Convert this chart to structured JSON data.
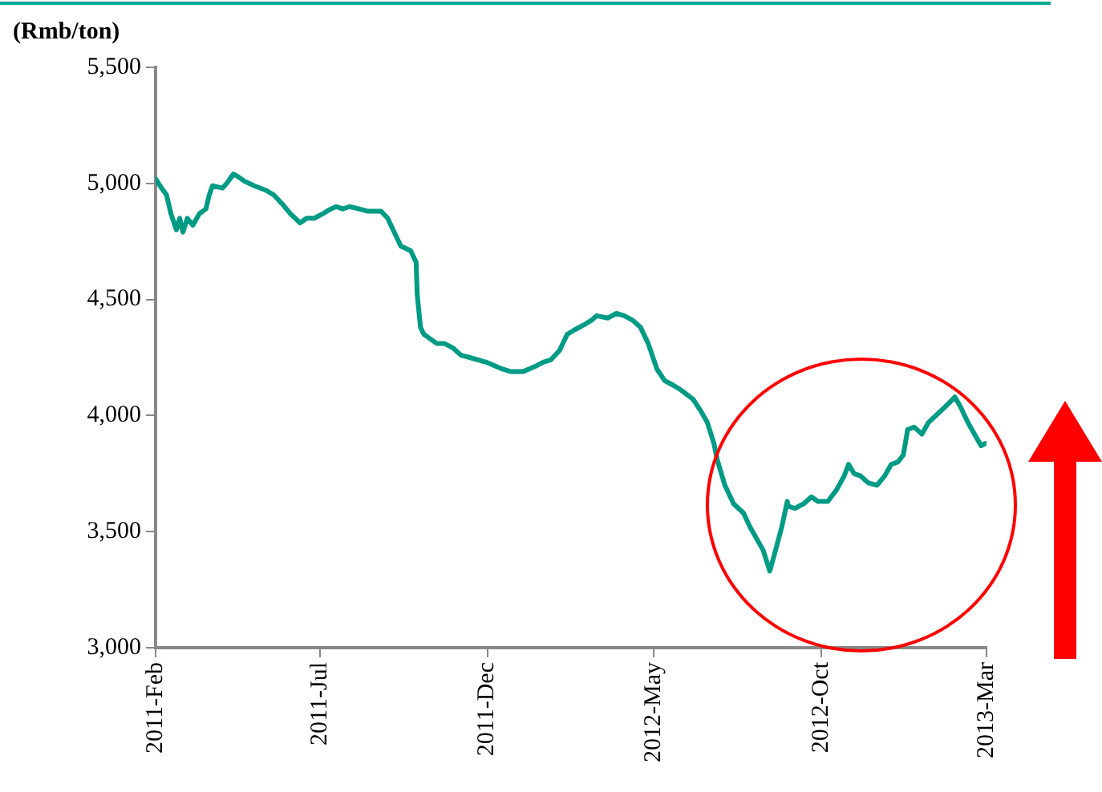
{
  "chart_data": {
    "type": "line",
    "ylabel": "(Rmb/ton)",
    "grid": false,
    "legend": false,
    "marker": "none",
    "line_style": "solid",
    "xlim": [
      "2011-02-01",
      "2013-03-01"
    ],
    "xticks": [
      {
        "value": "2011-02-01",
        "label": "2011-Feb"
      },
      {
        "value": "2011-07-01",
        "label": "2011-Jul"
      },
      {
        "value": "2011-12-01",
        "label": "2011-Dec"
      },
      {
        "value": "2012-05-01",
        "label": "2012-May"
      },
      {
        "value": "2012-10-01",
        "label": "2012-Oct"
      },
      {
        "value": "2013-03-01",
        "label": "2013-Mar"
      }
    ],
    "ylim": [
      3000,
      5500
    ],
    "yticks": [
      {
        "value": 3000,
        "label": "3,000"
      },
      {
        "value": 3500,
        "label": "3,500"
      },
      {
        "value": 4000,
        "label": "4,000"
      },
      {
        "value": 4500,
        "label": "4,500"
      },
      {
        "value": 5000,
        "label": "5,000"
      },
      {
        "value": 5500,
        "label": "5,500"
      }
    ],
    "x": [
      "2011-02-01",
      "2011-02-05",
      "2011-02-11",
      "2011-02-15",
      "2011-02-20",
      "2011-02-23",
      "2011-02-26",
      "2011-03-02",
      "2011-03-07",
      "2011-03-13",
      "2011-03-19",
      "2011-03-22",
      "2011-03-25",
      "2011-04-03",
      "2011-04-07",
      "2011-04-13",
      "2011-04-17",
      "2011-04-23",
      "2011-05-02",
      "2011-05-13",
      "2011-05-20",
      "2011-05-28",
      "2011-06-04",
      "2011-06-13",
      "2011-06-19",
      "2011-06-26",
      "2011-07-04",
      "2011-07-11",
      "2011-07-16",
      "2011-07-22",
      "2011-07-28",
      "2011-08-06",
      "2011-08-14",
      "2011-08-26",
      "2011-09-01",
      "2011-09-09",
      "2011-09-13",
      "2011-09-22",
      "2011-09-27",
      "2011-09-28",
      "2011-10-01",
      "2011-10-04",
      "2011-10-10",
      "2011-10-16",
      "2011-10-23",
      "2011-10-31",
      "2011-11-07",
      "2011-11-15",
      "2011-11-30",
      "2011-12-15",
      "2011-12-22",
      "2012-01-03",
      "2012-01-13",
      "2012-01-21",
      "2012-01-28",
      "2012-02-05",
      "2012-02-12",
      "2012-02-19",
      "2012-02-27",
      "2012-03-05",
      "2012-03-10",
      "2012-03-20",
      "2012-03-28",
      "2012-04-04",
      "2012-04-12",
      "2012-04-19",
      "2012-04-26",
      "2012-05-04",
      "2012-05-11",
      "2012-05-19",
      "2012-05-26",
      "2012-06-06",
      "2012-06-13",
      "2012-06-19",
      "2012-06-25",
      "2012-06-28",
      "2012-07-05",
      "2012-07-13",
      "2012-07-22",
      "2012-07-28",
      "2012-08-03",
      "2012-08-09",
      "2012-08-15",
      "2012-08-18",
      "2012-08-22",
      "2012-08-26",
      "2012-08-31",
      "2012-09-01",
      "2012-09-07",
      "2012-09-15",
      "2012-09-22",
      "2012-09-28",
      "2012-10-07",
      "2012-10-15",
      "2012-10-22",
      "2012-10-26",
      "2012-10-31",
      "2012-11-06",
      "2012-11-13",
      "2012-11-21",
      "2012-11-28",
      "2012-12-04",
      "2012-12-10",
      "2012-12-15",
      "2012-12-19",
      "2012-12-25",
      "2013-01-01",
      "2013-01-07",
      "2013-01-16",
      "2013-01-25",
      "2013-01-31",
      "2013-02-05",
      "2013-02-12",
      "2013-02-18",
      "2013-02-24",
      "2013-02-28"
    ],
    "series": [
      {
        "color": "#009b85",
        "values": [
          5020,
          4990,
          4950,
          4870,
          4800,
          4850,
          4790,
          4850,
          4820,
          4870,
          4890,
          4950,
          4990,
          4980,
          5000,
          5040,
          5030,
          5010,
          4990,
          4970,
          4950,
          4910,
          4870,
          4830,
          4850,
          4850,
          4870,
          4890,
          4900,
          4890,
          4900,
          4890,
          4880,
          4880,
          4850,
          4770,
          4730,
          4710,
          4660,
          4520,
          4380,
          4350,
          4330,
          4310,
          4310,
          4290,
          4260,
          4250,
          4230,
          4200,
          4190,
          4190,
          4210,
          4230,
          4240,
          4280,
          4350,
          4370,
          4390,
          4410,
          4430,
          4420,
          4440,
          4430,
          4410,
          4380,
          4310,
          4200,
          4150,
          4130,
          4110,
          4070,
          4020,
          3970,
          3880,
          3810,
          3700,
          3620,
          3580,
          3520,
          3470,
          3420,
          3330,
          3380,
          3450,
          3520,
          3630,
          3610,
          3600,
          3620,
          3650,
          3630,
          3630,
          3680,
          3740,
          3790,
          3750,
          3740,
          3710,
          3700,
          3740,
          3790,
          3800,
          3830,
          3940,
          3950,
          3920,
          3970,
          4010,
          4050,
          4080,
          4040,
          3970,
          3920,
          3870,
          3880
        ]
      }
    ]
  }
}
